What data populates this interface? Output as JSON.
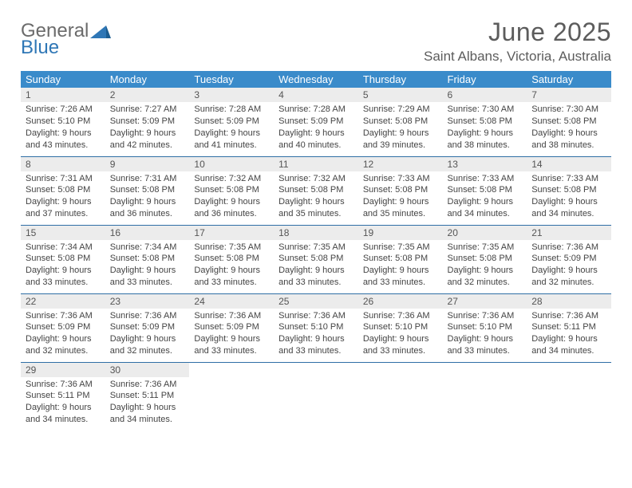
{
  "brand": {
    "line1": "General",
    "line2": "Blue",
    "color1": "#6b6b6b",
    "color2": "#2f77b6"
  },
  "title": "June 2025",
  "location": "Saint Albans, Victoria, Australia",
  "colors": {
    "header_bg": "#3a8bca",
    "header_fg": "#ffffff",
    "rule": "#2f6fa6",
    "daynum_bg": "#ececec",
    "text": "#444444",
    "title": "#5c5c5c",
    "page_bg": "#ffffff"
  },
  "days_header": [
    "Sunday",
    "Monday",
    "Tuesday",
    "Wednesday",
    "Thursday",
    "Friday",
    "Saturday"
  ],
  "weeks": [
    [
      {
        "n": "1",
        "sr": "7:26 AM",
        "ss": "5:10 PM",
        "dl": "9 hours and 43 minutes."
      },
      {
        "n": "2",
        "sr": "7:27 AM",
        "ss": "5:09 PM",
        "dl": "9 hours and 42 minutes."
      },
      {
        "n": "3",
        "sr": "7:28 AM",
        "ss": "5:09 PM",
        "dl": "9 hours and 41 minutes."
      },
      {
        "n": "4",
        "sr": "7:28 AM",
        "ss": "5:09 PM",
        "dl": "9 hours and 40 minutes."
      },
      {
        "n": "5",
        "sr": "7:29 AM",
        "ss": "5:08 PM",
        "dl": "9 hours and 39 minutes."
      },
      {
        "n": "6",
        "sr": "7:30 AM",
        "ss": "5:08 PM",
        "dl": "9 hours and 38 minutes."
      },
      {
        "n": "7",
        "sr": "7:30 AM",
        "ss": "5:08 PM",
        "dl": "9 hours and 38 minutes."
      }
    ],
    [
      {
        "n": "8",
        "sr": "7:31 AM",
        "ss": "5:08 PM",
        "dl": "9 hours and 37 minutes."
      },
      {
        "n": "9",
        "sr": "7:31 AM",
        "ss": "5:08 PM",
        "dl": "9 hours and 36 minutes."
      },
      {
        "n": "10",
        "sr": "7:32 AM",
        "ss": "5:08 PM",
        "dl": "9 hours and 36 minutes."
      },
      {
        "n": "11",
        "sr": "7:32 AM",
        "ss": "5:08 PM",
        "dl": "9 hours and 35 minutes."
      },
      {
        "n": "12",
        "sr": "7:33 AM",
        "ss": "5:08 PM",
        "dl": "9 hours and 35 minutes."
      },
      {
        "n": "13",
        "sr": "7:33 AM",
        "ss": "5:08 PM",
        "dl": "9 hours and 34 minutes."
      },
      {
        "n": "14",
        "sr": "7:33 AM",
        "ss": "5:08 PM",
        "dl": "9 hours and 34 minutes."
      }
    ],
    [
      {
        "n": "15",
        "sr": "7:34 AM",
        "ss": "5:08 PM",
        "dl": "9 hours and 33 minutes."
      },
      {
        "n": "16",
        "sr": "7:34 AM",
        "ss": "5:08 PM",
        "dl": "9 hours and 33 minutes."
      },
      {
        "n": "17",
        "sr": "7:35 AM",
        "ss": "5:08 PM",
        "dl": "9 hours and 33 minutes."
      },
      {
        "n": "18",
        "sr": "7:35 AM",
        "ss": "5:08 PM",
        "dl": "9 hours and 33 minutes."
      },
      {
        "n": "19",
        "sr": "7:35 AM",
        "ss": "5:08 PM",
        "dl": "9 hours and 33 minutes."
      },
      {
        "n": "20",
        "sr": "7:35 AM",
        "ss": "5:08 PM",
        "dl": "9 hours and 32 minutes."
      },
      {
        "n": "21",
        "sr": "7:36 AM",
        "ss": "5:09 PM",
        "dl": "9 hours and 32 minutes."
      }
    ],
    [
      {
        "n": "22",
        "sr": "7:36 AM",
        "ss": "5:09 PM",
        "dl": "9 hours and 32 minutes."
      },
      {
        "n": "23",
        "sr": "7:36 AM",
        "ss": "5:09 PM",
        "dl": "9 hours and 32 minutes."
      },
      {
        "n": "24",
        "sr": "7:36 AM",
        "ss": "5:09 PM",
        "dl": "9 hours and 33 minutes."
      },
      {
        "n": "25",
        "sr": "7:36 AM",
        "ss": "5:10 PM",
        "dl": "9 hours and 33 minutes."
      },
      {
        "n": "26",
        "sr": "7:36 AM",
        "ss": "5:10 PM",
        "dl": "9 hours and 33 minutes."
      },
      {
        "n": "27",
        "sr": "7:36 AM",
        "ss": "5:10 PM",
        "dl": "9 hours and 33 minutes."
      },
      {
        "n": "28",
        "sr": "7:36 AM",
        "ss": "5:11 PM",
        "dl": "9 hours and 34 minutes."
      }
    ],
    [
      {
        "n": "29",
        "sr": "7:36 AM",
        "ss": "5:11 PM",
        "dl": "9 hours and 34 minutes."
      },
      {
        "n": "30",
        "sr": "7:36 AM",
        "ss": "5:11 PM",
        "dl": "9 hours and 34 minutes."
      },
      null,
      null,
      null,
      null,
      null
    ]
  ],
  "labels": {
    "sunrise": "Sunrise:",
    "sunset": "Sunset:",
    "daylight": "Daylight:"
  }
}
